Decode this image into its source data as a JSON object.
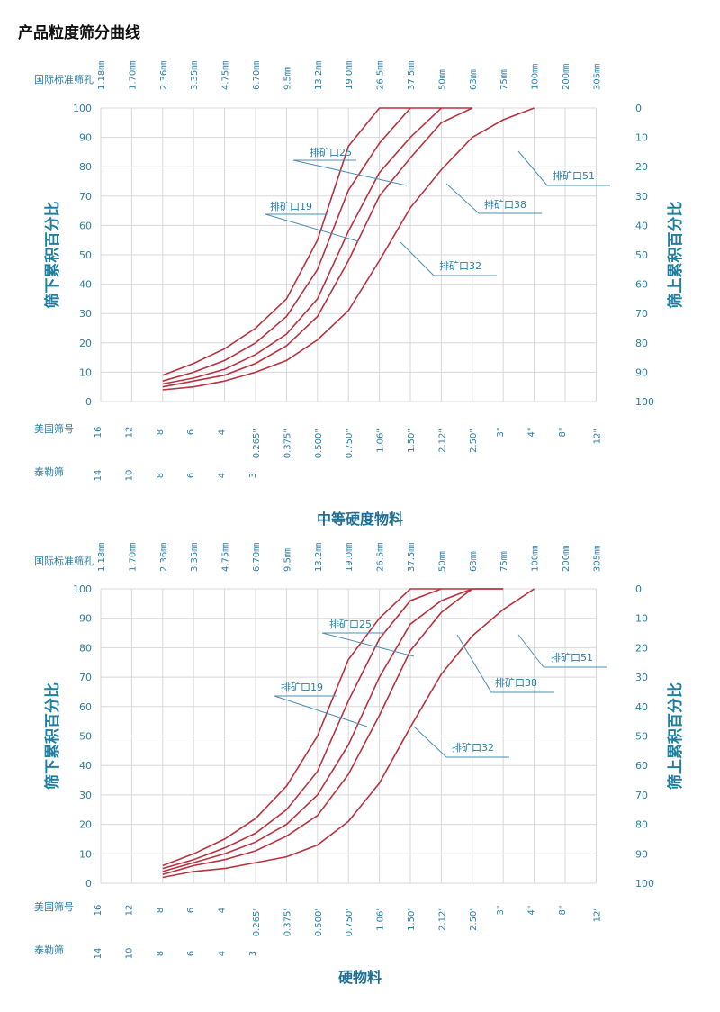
{
  "page_title": "产品粒度筛分曲线",
  "colors": {
    "curve": "#b8323f",
    "grid": "#d8d8d8",
    "text": "#2a7fa6",
    "leader": "#4a8fb5"
  },
  "chart_data": [
    {
      "type": "line",
      "title": "中等硬度物料",
      "top_axis_label": "国际标准筛孔",
      "top_ticks": [
        "1.18㎜",
        "1.70㎜",
        "2.36㎜",
        "3.35㎜",
        "4.75㎜",
        "6.70㎜",
        "9.5㎜",
        "13.2㎜",
        "19.0㎜",
        "26.5㎜",
        "37.5㎜",
        "50㎜",
        "63㎜",
        "75㎜",
        "100㎜",
        "200㎜",
        "305㎜"
      ],
      "us_label": "美国筛号",
      "us_ticks": [
        "16",
        "12",
        "8",
        "6",
        "4",
        "0.265\"",
        "0.375\"",
        "0.500\"",
        "0.750\"",
        "1.06\"",
        "1.50\"",
        "2.12\"",
        "2.50\"",
        "3\"",
        "4\"",
        "8\"",
        "12\""
      ],
      "tyler_label": "泰勒筛",
      "tyler_ticks": [
        "14",
        "10",
        "8",
        "6",
        "4",
        "3"
      ],
      "ylabel_left": "筛下累积百分比",
      "ylabel_right": "筛上累积百分比",
      "y_left_ticks": [
        "100",
        "90",
        "80",
        "70",
        "60",
        "50",
        "40",
        "30",
        "20",
        "10",
        "0"
      ],
      "y_right_ticks": [
        "0",
        "10",
        "20",
        "30",
        "40",
        "50",
        "60",
        "70",
        "80",
        "90",
        "100"
      ],
      "ylim": [
        0,
        100
      ],
      "grid": true,
      "series": [
        {
          "name": "排矿口19",
          "x": [
            "2.36㎜",
            "3.35㎜",
            "4.75㎜",
            "6.70㎜",
            "9.5㎜",
            "13.2㎜",
            "19.0㎜",
            "26.5㎜",
            "37.5㎜"
          ],
          "values": [
            9,
            13,
            18,
            25,
            35,
            55,
            87,
            100,
            100
          ]
        },
        {
          "name": "排矿口25",
          "x": [
            "2.36㎜",
            "3.35㎜",
            "4.75㎜",
            "6.70㎜",
            "9.5㎜",
            "13.2㎜",
            "19.0㎜",
            "26.5㎜",
            "37.5㎜",
            "50㎜"
          ],
          "values": [
            7,
            10,
            14,
            20,
            29,
            45,
            72,
            88,
            100,
            100
          ]
        },
        {
          "name": "排矿口32",
          "x": [
            "2.36㎜",
            "3.35㎜",
            "4.75㎜",
            "6.70㎜",
            "9.5㎜",
            "13.2㎜",
            "19.0㎜",
            "26.5㎜",
            "37.5㎜",
            "50㎜",
            "63㎜"
          ],
          "values": [
            6,
            8,
            11,
            16,
            23,
            35,
            58,
            78,
            90,
            100,
            100
          ]
        },
        {
          "name": "排矿口38",
          "x": [
            "2.36㎜",
            "3.35㎜",
            "4.75㎜",
            "6.70㎜",
            "9.5㎜",
            "13.2㎜",
            "19.0㎜",
            "26.5㎜",
            "37.5㎜",
            "50㎜",
            "63㎜"
          ],
          "values": [
            5,
            7,
            9,
            13,
            19,
            29,
            48,
            70,
            83,
            95,
            100
          ]
        },
        {
          "name": "排矿口51",
          "x": [
            "2.36㎜",
            "3.35㎜",
            "4.75㎜",
            "6.70㎜",
            "9.5㎜",
            "13.2㎜",
            "19.0㎜",
            "26.5㎜",
            "37.5㎜",
            "50㎜",
            "63㎜",
            "75㎜",
            "100㎜"
          ],
          "values": [
            4,
            5,
            7,
            10,
            14,
            21,
            31,
            48,
            66,
            79,
            90,
            96,
            100
          ]
        }
      ],
      "callouts": [
        "排矿口25",
        "排矿口19",
        "排矿口51",
        "排矿口38",
        "排矿口32"
      ]
    },
    {
      "type": "line",
      "title": "硬物料",
      "top_axis_label": "国际标准筛孔",
      "top_ticks": [
        "1.18㎜",
        "1.70㎜",
        "2.36㎜",
        "3.35㎜",
        "4.75㎜",
        "6.70㎜",
        "9.5㎜",
        "13.2㎜",
        "19.0㎜",
        "26.5㎜",
        "37.5㎜",
        "50㎜",
        "63㎜",
        "75㎜",
        "100㎜",
        "200㎜",
        "305㎜"
      ],
      "us_label": "美国筛号",
      "us_ticks": [
        "16",
        "12",
        "8",
        "6",
        "4",
        "0.265\"",
        "0.375\"",
        "0.500\"",
        "0.750\"",
        "1.06\"",
        "1.50\"",
        "2.12\"",
        "2.50\"",
        "3\"",
        "4\"",
        "8\"",
        "12\""
      ],
      "tyler_label": "泰勒筛",
      "tyler_ticks": [
        "14",
        "10",
        "8",
        "6",
        "4",
        "3"
      ],
      "ylabel_left": "筛下累积百分比",
      "ylabel_right": "筛上累积百分比",
      "y_left_ticks": [
        "100",
        "90",
        "80",
        "70",
        "60",
        "50",
        "40",
        "30",
        "20",
        "10",
        "0"
      ],
      "y_right_ticks": [
        "0",
        "10",
        "20",
        "30",
        "40",
        "50",
        "60",
        "70",
        "80",
        "90",
        "100"
      ],
      "ylim": [
        0,
        100
      ],
      "grid": true,
      "series": [
        {
          "name": "排矿口19",
          "x": [
            "2.36㎜",
            "3.35㎜",
            "4.75㎜",
            "6.70㎜",
            "9.5㎜",
            "13.2㎜",
            "19.0㎜",
            "26.5㎜",
            "37.5㎜",
            "50㎜"
          ],
          "values": [
            6,
            10,
            15,
            22,
            33,
            50,
            76,
            90,
            100,
            100
          ]
        },
        {
          "name": "排矿口25",
          "x": [
            "2.36㎜",
            "3.35㎜",
            "4.75㎜",
            "6.70㎜",
            "9.5㎜",
            "13.2㎜",
            "19.0㎜",
            "26.5㎜",
            "37.5㎜",
            "50㎜",
            "63㎜"
          ],
          "values": [
            5,
            8,
            12,
            17,
            25,
            38,
            62,
            83,
            96,
            100,
            100
          ]
        },
        {
          "name": "排矿口38",
          "x": [
            "2.36㎜",
            "3.35㎜",
            "4.75㎜",
            "6.70㎜",
            "9.5㎜",
            "13.2㎜",
            "19.0㎜",
            "26.5㎜",
            "37.5㎜",
            "50㎜",
            "63㎜",
            "75㎜"
          ],
          "values": [
            4,
            7,
            10,
            14,
            20,
            30,
            47,
            70,
            88,
            96,
            100,
            100
          ]
        },
        {
          "name": "排矿口32",
          "x": [
            "2.36㎜",
            "3.35㎜",
            "4.75㎜",
            "6.70㎜",
            "9.5㎜",
            "13.2㎜",
            "19.0㎜",
            "26.5㎜",
            "37.5㎜",
            "50㎜",
            "63㎜",
            "75㎜"
          ],
          "values": [
            3,
            6,
            8,
            11,
            16,
            23,
            37,
            57,
            79,
            92,
            100,
            100
          ]
        },
        {
          "name": "排矿口51",
          "x": [
            "2.36㎜",
            "3.35㎜",
            "4.75㎜",
            "6.70㎜",
            "9.5㎜",
            "13.2㎜",
            "19.0㎜",
            "26.5㎜",
            "37.5㎜",
            "50㎜",
            "63㎜",
            "75㎜",
            "100㎜"
          ],
          "values": [
            2,
            4,
            5,
            7,
            9,
            13,
            21,
            34,
            53,
            71,
            84,
            93,
            100
          ]
        }
      ],
      "callouts": [
        "排矿口25",
        "排矿口19",
        "排矿口51",
        "排矿口38",
        "排矿口32"
      ]
    }
  ]
}
